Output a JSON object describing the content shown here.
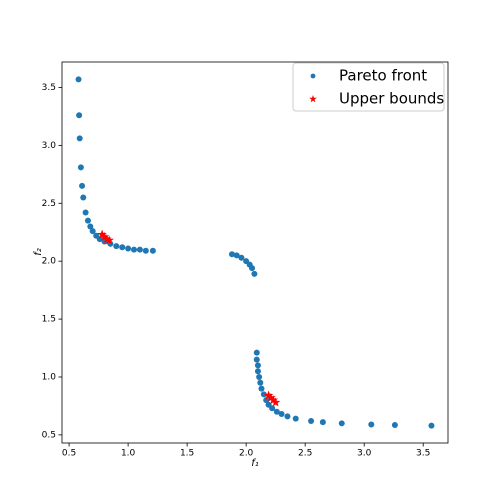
{
  "chart_data": {
    "type": "scatter",
    "x_label": "f₁",
    "y_label": "f₂",
    "xlim": [
      0.44,
      3.71
    ],
    "ylim": [
      0.43,
      3.72
    ],
    "xticks": [
      0.5,
      {
        "value": 1.0,
        "label": "1.0"
      },
      1.5,
      {
        "value": 2.0,
        "label": "2.0"
      },
      2.5,
      {
        "value": 3.0,
        "label": "3.0"
      },
      3.5
    ],
    "yticks": [
      0.5,
      {
        "value": 1.0,
        "label": "1.0"
      },
      1.5,
      {
        "value": 2.0,
        "label": "2.0"
      },
      2.5,
      {
        "value": 3.0,
        "label": "3.0"
      },
      3.5
    ],
    "legend": "upper right",
    "series": [
      {
        "name": "Pareto front",
        "color": "#1f77b4",
        "marker": "dot",
        "x": [
          0.58,
          0.585,
          0.59,
          0.6,
          0.61,
          0.62,
          0.64,
          0.66,
          0.68,
          0.7,
          0.73,
          0.76,
          0.8,
          0.85,
          0.9,
          0.95,
          1.0,
          1.05,
          1.1,
          1.15,
          1.21,
          1.88,
          1.92,
          1.96,
          2.0,
          2.03,
          2.05,
          2.07,
          2.09,
          2.09,
          2.1,
          2.1,
          2.11,
          2.12,
          2.13,
          2.15,
          2.17,
          2.19,
          2.22,
          2.26,
          2.3,
          2.35,
          2.42,
          2.55,
          2.65,
          2.81,
          3.06,
          3.26,
          3.57
        ],
        "values": [
          3.57,
          3.26,
          3.06,
          2.81,
          2.65,
          2.55,
          2.42,
          2.35,
          2.3,
          2.26,
          2.22,
          2.19,
          2.17,
          2.15,
          2.13,
          2.12,
          2.11,
          2.1,
          2.1,
          2.09,
          2.09,
          2.06,
          2.05,
          2.03,
          2.0,
          1.97,
          1.94,
          1.89,
          1.21,
          1.15,
          1.1,
          1.05,
          1.0,
          0.95,
          0.9,
          0.85,
          0.8,
          0.76,
          0.73,
          0.7,
          0.68,
          0.66,
          0.64,
          0.62,
          0.61,
          0.6,
          0.59,
          0.585,
          0.58
        ]
      },
      {
        "name": "Upper bounds",
        "color": "#ff0000",
        "marker": "star",
        "x": [
          0.78,
          0.8,
          0.82,
          0.84,
          2.19,
          2.21,
          2.23,
          2.25
        ],
        "values": [
          2.23,
          2.21,
          2.19,
          2.18,
          0.84,
          0.82,
          0.8,
          0.78
        ]
      }
    ]
  }
}
